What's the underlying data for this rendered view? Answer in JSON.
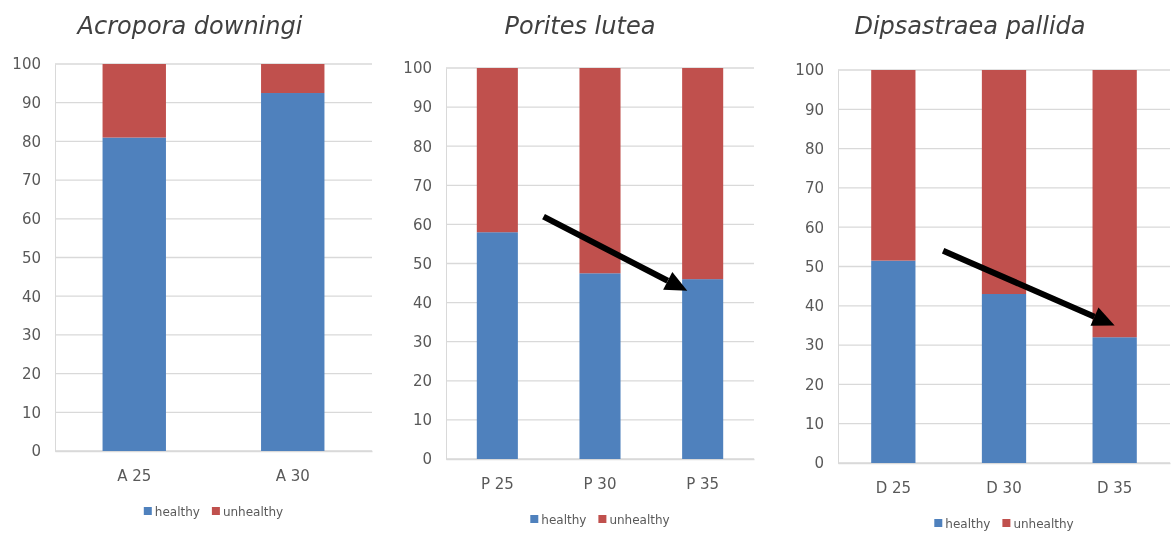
{
  "chart_data": [
    {
      "type": "bar",
      "title": "Acropora downingi",
      "categories": [
        "A 25",
        "A 30"
      ],
      "stacked": true,
      "ylim": [
        0,
        100
      ],
      "yticks": [
        0,
        10,
        20,
        30,
        40,
        50,
        60,
        70,
        80,
        90,
        100
      ],
      "grid": "y",
      "legend": "bottom",
      "series": [
        {
          "name": "healthy",
          "color": "#4f81bd",
          "values": [
            81,
            92.5
          ]
        },
        {
          "name": "unhealthy",
          "color": "#c0504d",
          "values": [
            19,
            7.5
          ]
        }
      ]
    },
    {
      "type": "bar",
      "title": "Porites lutea",
      "categories": [
        "P 25",
        "P 30",
        "P 35"
      ],
      "stacked": true,
      "ylim": [
        0,
        100
      ],
      "yticks": [
        0,
        10,
        20,
        30,
        40,
        50,
        60,
        70,
        80,
        90,
        100
      ],
      "grid": "y",
      "legend": "bottom",
      "series": [
        {
          "name": "healthy",
          "color": "#4f81bd",
          "values": [
            58,
            47.5,
            46
          ]
        },
        {
          "name": "unhealthy",
          "color": "#c0504d",
          "values": [
            42,
            52.5,
            54
          ]
        }
      ]
    },
    {
      "type": "bar",
      "title": "Dipsastraea pallida",
      "categories": [
        "D 25",
        "D 30",
        "D 35"
      ],
      "stacked": true,
      "ylim": [
        0,
        100
      ],
      "yticks": [
        0,
        10,
        20,
        30,
        40,
        50,
        60,
        70,
        80,
        90,
        100
      ],
      "grid": "y",
      "legend": "bottom",
      "series": [
        {
          "name": "healthy",
          "color": "#4f81bd",
          "values": [
            51.5,
            43,
            32
          ]
        },
        {
          "name": "unhealthy",
          "color": "#c0504d",
          "values": [
            48.5,
            57,
            68
          ]
        }
      ]
    }
  ]
}
